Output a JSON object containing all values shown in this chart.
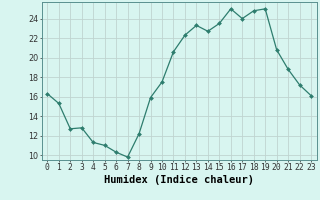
{
  "x": [
    0,
    1,
    2,
    3,
    4,
    5,
    6,
    7,
    8,
    9,
    10,
    11,
    12,
    13,
    14,
    15,
    16,
    17,
    18,
    19,
    20,
    21,
    22,
    23
  ],
  "y": [
    16.3,
    15.3,
    12.7,
    12.8,
    11.3,
    11.0,
    10.3,
    9.8,
    12.2,
    15.9,
    17.5,
    20.6,
    22.3,
    23.3,
    22.7,
    23.5,
    25.0,
    24.0,
    24.8,
    25.0,
    20.8,
    18.8,
    17.2,
    16.1
  ],
  "xlabel": "Humidex (Indice chaleur)",
  "xlim": [
    -0.5,
    23.5
  ],
  "ylim": [
    9.5,
    25.7
  ],
  "yticks": [
    10,
    12,
    14,
    16,
    18,
    20,
    22,
    24
  ],
  "xticks": [
    0,
    1,
    2,
    3,
    4,
    5,
    6,
    7,
    8,
    9,
    10,
    11,
    12,
    13,
    14,
    15,
    16,
    17,
    18,
    19,
    20,
    21,
    22,
    23
  ],
  "line_color": "#2e7d6e",
  "marker": "D",
  "marker_size": 2.0,
  "bg_color": "#d8f5f0",
  "grid_color": "#c0d4d0",
  "xlabel_fontsize": 7.5,
  "tick_fontsize": 5.8
}
